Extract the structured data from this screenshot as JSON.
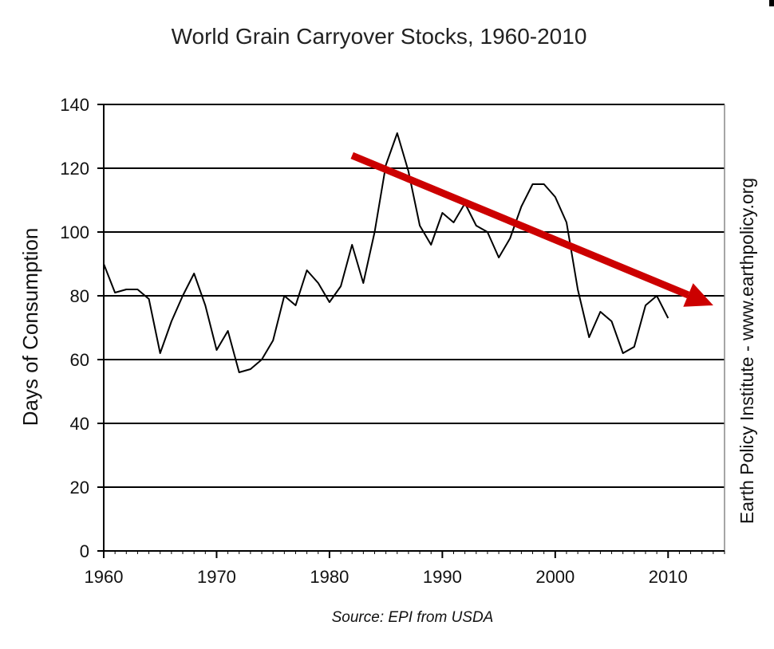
{
  "colors": {
    "series": "#000000",
    "trend_arrow": "#cc0000",
    "grid": "#000000",
    "axis": "#000000"
  },
  "chart_data": {
    "type": "line",
    "title": "World Grain Carryover Stocks, 1960-2010",
    "ylabel": "Days of Consumption",
    "xlabel": "",
    "right_label": "Earth Policy Institute - www.earthpolicy.org",
    "source": "Source: EPI from USDA",
    "xlim": [
      1960,
      2015
    ],
    "ylim": [
      0,
      140
    ],
    "x_ticks": [
      1960,
      1970,
      1980,
      1990,
      2000,
      2010
    ],
    "y_ticks": [
      0,
      20,
      40,
      60,
      80,
      100,
      120,
      140
    ],
    "grid": "horizontal",
    "legend": "none",
    "series": [
      {
        "x": [
          1960,
          1961,
          1962,
          1963,
          1964,
          1965,
          1966,
          1967,
          1968,
          1969,
          1970,
          1971,
          1972,
          1973,
          1974,
          1975,
          1976,
          1977,
          1978,
          1979,
          1980,
          1981,
          1982,
          1983,
          1984,
          1985,
          1986,
          1987,
          1988,
          1989,
          1990,
          1991,
          1992,
          1993,
          1994,
          1995,
          1996,
          1997,
          1998,
          1999,
          2000,
          2001,
          2002,
          2003,
          2004,
          2005,
          2006,
          2007,
          2008,
          2009,
          2010
        ],
        "values": [
          90,
          81,
          82,
          82,
          79,
          62,
          72,
          80,
          87,
          77,
          63,
          69,
          56,
          57,
          60,
          66,
          80,
          77,
          88,
          84,
          78,
          83,
          96,
          84,
          100,
          121,
          131,
          119,
          102,
          96,
          106,
          103,
          109,
          102,
          100,
          92,
          98,
          108,
          115,
          115,
          111,
          103,
          82,
          67,
          75,
          72,
          62,
          64,
          77,
          80,
          73
        ]
      }
    ],
    "trend_arrow": {
      "from": {
        "x": 1982,
        "y": 124
      },
      "to": {
        "x": 2014,
        "y": 77
      }
    }
  }
}
